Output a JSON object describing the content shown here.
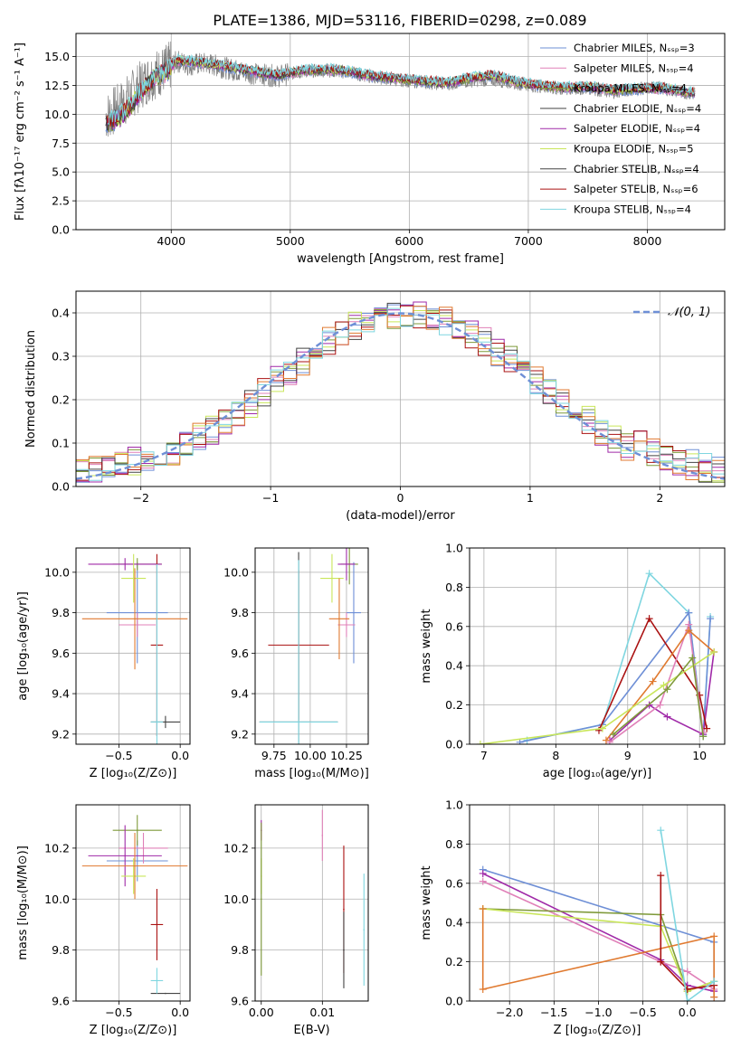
{
  "figure": {
    "title": "PLATE=1386, MJD=53116, FIBERID=0298, z=0.089"
  },
  "colors": {
    "series": [
      "#6e8fd6",
      "#e080b8",
      "#7f9a3a",
      "#a02aa8",
      "#c9e65a",
      "#444444",
      "#aa1111",
      "#e07a30",
      "#7fd6e0"
    ]
  },
  "chart_data": [
    {
      "id": "spectrum",
      "type": "line",
      "xlabel": "wavelength [Angstrom, rest frame]",
      "ylabel": "Flux [fλ10⁻¹⁷ erg cm⁻² s⁻¹ A⁻¹]",
      "xlim": [
        3200,
        8650
      ],
      "ylim": [
        0,
        17
      ],
      "xticks": [
        4000,
        5000,
        6000,
        7000,
        8000
      ],
      "yticks": [
        0.0,
        2.5,
        5.0,
        7.5,
        10.0,
        12.5,
        15.0
      ],
      "legend_position": "top-right",
      "legend": [
        {
          "label": "Chabrier MILES, Nₛₛₚ=3",
          "color": "#6e8fd6"
        },
        {
          "label": "Salpeter MILES, Nₛₛₚ=4",
          "color": "#e080b8"
        },
        {
          "label": "Kroupa MILES, Nₛₛₚ=4",
          "color": "#7f9a3a"
        },
        {
          "label": "Chabrier ELODIE, Nₛₛₚ=4",
          "color": "#444444"
        },
        {
          "label": "Salpeter ELODIE, Nₛₛₚ=4",
          "color": "#a02aa8"
        },
        {
          "label": "Kroupa ELODIE, Nₛₛₚ=5",
          "color": "#c9e65a"
        },
        {
          "label": "Chabrier STELIB, Nₛₛₚ=4",
          "color": "#444444"
        },
        {
          "label": "Salpeter STELIB, Nₛₛₚ=6",
          "color": "#aa1111"
        },
        {
          "label": "Kroupa STELIB, Nₛₛₚ=4",
          "color": "#7fd6e0"
        }
      ],
      "data_trace": {
        "x": [
          3450,
          3550,
          3650,
          3750,
          3850,
          3950,
          4050,
          4150,
          4300,
          4500,
          4700,
          4900,
          5100,
          5300,
          5500,
          5700,
          5900,
          6100,
          6300,
          6500,
          6700,
          6900,
          7100,
          7300,
          7500,
          7700,
          7900,
          8100,
          8300,
          8400
        ],
        "y": [
          9.8,
          10.5,
          11.5,
          12.6,
          13.4,
          13.9,
          14.6,
          14.3,
          14.4,
          13.9,
          13.5,
          13.3,
          13.7,
          13.8,
          13.6,
          13.2,
          13.0,
          12.8,
          12.6,
          12.9,
          13.0,
          12.7,
          12.4,
          12.1,
          12.3,
          11.9,
          12.2,
          12.3,
          11.9,
          11.8
        ],
        "color": "#808080"
      },
      "model_trace": {
        "x": [
          3450,
          3550,
          3650,
          3750,
          3850,
          3950,
          4050,
          4150,
          4300,
          4500,
          4700,
          4900,
          5100,
          5300,
          5500,
          5700,
          5900,
          6100,
          6300,
          6500,
          6700,
          6900,
          7100,
          7300,
          7500,
          7700,
          7900,
          8100,
          8300,
          8400
        ],
        "y": [
          9.2,
          9.6,
          10.6,
          12.0,
          13.1,
          13.6,
          14.7,
          14.6,
          14.4,
          14.1,
          13.7,
          13.4,
          13.8,
          13.9,
          13.7,
          13.3,
          13.1,
          12.9,
          12.7,
          13.1,
          13.4,
          12.8,
          12.5,
          12.3,
          12.4,
          12.1,
          12.2,
          12.3,
          12.0,
          11.9
        ]
      }
    },
    {
      "id": "residuals",
      "type": "histogram",
      "xlabel": "(data-model)/error",
      "ylabel": "Normed distribution",
      "xlim": [
        -2.5,
        2.5
      ],
      "ylim": [
        0,
        0.45
      ],
      "xticks": [
        -2,
        -1,
        0,
        1,
        2
      ],
      "yticks": [
        0.0,
        0.1,
        0.2,
        0.3,
        0.4
      ],
      "legend_position": "top-right",
      "legend": [
        {
          "label": "𝒩(0, 1)",
          "color": "#6e8fd6",
          "style": "dashed"
        }
      ],
      "bin_width": 0.1
    },
    {
      "id": "age_vs_Z",
      "type": "errorbar",
      "xlabel": "Z [log₁₀(Z/Z⊙)]",
      "ylabel": "age  [log₁₀(age/yr)]",
      "xlim": [
        -0.85,
        0.08
      ],
      "ylim": [
        9.15,
        10.12
      ],
      "xticks": [
        -0.5,
        0.0
      ],
      "yticks": [
        9.2,
        9.4,
        9.6,
        9.8,
        10.0
      ],
      "points": [
        {
          "x": -0.35,
          "y": 9.8,
          "xerr": 0.25,
          "yerr": 0.25,
          "color": "#6e8fd6"
        },
        {
          "x": -0.35,
          "y": 9.74,
          "xerr": 0.15,
          "yerr": 0.06,
          "color": "#e080b8"
        },
        {
          "x": -0.35,
          "y": 10.04,
          "xerr": 0.2,
          "yerr": 0.03,
          "color": "#7f9a3a"
        },
        {
          "x": -0.45,
          "y": 10.04,
          "xerr": 0.3,
          "yerr": 0.03,
          "color": "#a02aa8"
        },
        {
          "x": -0.38,
          "y": 9.97,
          "xerr": 0.1,
          "yerr": 0.12,
          "color": "#c9e65a"
        },
        {
          "x": -0.12,
          "y": 9.26,
          "xerr": 0.12,
          "yerr": 0.03,
          "color": "#444444"
        },
        {
          "x": -0.19,
          "y": 9.64,
          "xerr": 0.05,
          "yerr": 0.45,
          "color": "#aa1111"
        },
        {
          "x": -0.37,
          "y": 9.77,
          "xerr": 0.43,
          "yerr": 0.25,
          "color": "#e07a30"
        },
        {
          "x": -0.19,
          "y": 9.26,
          "xerr": 0.05,
          "yerr": 0.78,
          "color": "#7fd6e0"
        }
      ]
    },
    {
      "id": "age_vs_mass",
      "type": "errorbar",
      "xlabel": "mass [log₁₀(M/M⊙)]",
      "ylabel": "",
      "xlim": [
        9.62,
        10.4
      ],
      "ylim": [
        9.15,
        10.12
      ],
      "xticks": [
        9.75,
        10.0,
        10.25
      ],
      "yticks": [
        9.2,
        9.4,
        9.6,
        9.8,
        10.0
      ],
      "points": [
        {
          "x": 10.3,
          "y": 9.8,
          "xerr": 0.05,
          "yerr": 0.25,
          "color": "#6e8fd6"
        },
        {
          "x": 10.25,
          "y": 9.74,
          "xerr": 0.06,
          "yerr": 0.06,
          "color": "#e080b8"
        },
        {
          "x": 10.27,
          "y": 10.04,
          "xerr": 0.06,
          "yerr": 0.1,
          "color": "#7f9a3a"
        },
        {
          "x": 10.25,
          "y": 10.04,
          "xerr": 0.06,
          "yerr": 0.08,
          "color": "#a02aa8"
        },
        {
          "x": 10.15,
          "y": 9.97,
          "xerr": 0.08,
          "yerr": 0.12,
          "color": "#c9e65a"
        },
        {
          "x": 9.92,
          "y": 9.26,
          "xerr": 0.27,
          "yerr": 0.84,
          "color": "#444444"
        },
        {
          "x": 9.92,
          "y": 9.64,
          "xerr": 0.21,
          "yerr": 0.37,
          "color": "#aa1111"
        },
        {
          "x": 10.2,
          "y": 9.77,
          "xerr": 0.07,
          "yerr": 0.2,
          "color": "#e07a30"
        },
        {
          "x": 9.92,
          "y": 9.26,
          "xerr": 0.27,
          "yerr": 0.8,
          "color": "#7fd6e0"
        }
      ]
    },
    {
      "id": "weight_vs_age",
      "type": "line",
      "xlabel": "age  [log₁₀(age/yr)]",
      "ylabel": "mass weight",
      "xlim": [
        6.8,
        10.35
      ],
      "ylim": [
        0,
        1.0
      ],
      "xticks": [
        7,
        8,
        9,
        10
      ],
      "yticks": [
        0.0,
        0.2,
        0.4,
        0.6,
        0.8,
        1.0
      ],
      "series": [
        {
          "x": [
            7.6,
            8.65,
            9.3,
            9.85,
            10.05,
            10.15
          ],
          "y": [
            0.02,
            0.1,
            0.87,
            0.67,
            0.05,
            0.65
          ],
          "color": "#7fd6e0"
        },
        {
          "x": [
            7.5,
            8.65,
            9.85,
            10.05,
            10.15
          ],
          "y": [
            0.01,
            0.1,
            0.67,
            0.04,
            0.64
          ],
          "color": "#6e8fd6"
        },
        {
          "x": [
            8.75,
            9.3,
            9.55,
            10.05,
            10.2
          ],
          "y": [
            0.02,
            0.2,
            0.14,
            0.05,
            0.47
          ],
          "color": "#a02aa8"
        },
        {
          "x": [
            8.6,
            9.3,
            10.0,
            10.1
          ],
          "y": [
            0.07,
            0.64,
            0.25,
            0.08
          ],
          "color": "#aa1111"
        },
        {
          "x": [
            8.75,
            9.45,
            9.85,
            10.05
          ],
          "y": [
            0.01,
            0.2,
            0.61,
            0.06
          ],
          "color": "#e080b8"
        },
        {
          "x": [
            8.7,
            9.35,
            9.85,
            10.2
          ],
          "y": [
            0.02,
            0.32,
            0.58,
            0.47
          ],
          "color": "#e07a30"
        },
        {
          "x": [
            6.95,
            8.65,
            9.5,
            10.2
          ],
          "y": [
            0.0,
            0.08,
            0.3,
            0.47
          ],
          "color": "#c9e65a"
        },
        {
          "x": [
            8.8,
            9.55,
            9.9,
            10.05
          ],
          "y": [
            0.05,
            0.28,
            0.44,
            0.04
          ],
          "color": "#7f9a3a"
        }
      ]
    },
    {
      "id": "mass_vs_Z",
      "type": "errorbar",
      "xlabel": "Z [log₁₀(Z/Z⊙)]",
      "ylabel": "mass [log₁₀(M/M⊙)]",
      "xlim": [
        -0.85,
        0.08
      ],
      "ylim": [
        9.6,
        10.37
      ],
      "xticks": [
        -0.5,
        0.0
      ],
      "yticks": [
        9.6,
        9.8,
        10.0,
        10.2
      ],
      "points": [
        {
          "x": -0.35,
          "y": 10.15,
          "xerr": 0.25,
          "yerr": 0.08,
          "color": "#6e8fd6"
        },
        {
          "x": -0.3,
          "y": 10.2,
          "xerr": 0.2,
          "yerr": 0.06,
          "color": "#e080b8"
        },
        {
          "x": -0.35,
          "y": 10.27,
          "xerr": 0.2,
          "yerr": 0.06,
          "color": "#7f9a3a"
        },
        {
          "x": -0.45,
          "y": 10.17,
          "xerr": 0.3,
          "yerr": 0.12,
          "color": "#a02aa8"
        },
        {
          "x": -0.38,
          "y": 10.09,
          "xerr": 0.1,
          "yerr": 0.07,
          "color": "#c9e65a"
        },
        {
          "x": -0.12,
          "y": 9.63,
          "xerr": 0.12,
          "yerr": 0.0,
          "color": "#444444"
        },
        {
          "x": -0.19,
          "y": 9.9,
          "xerr": 0.05,
          "yerr": 0.14,
          "color": "#aa1111"
        },
        {
          "x": -0.37,
          "y": 10.13,
          "xerr": 0.43,
          "yerr": 0.13,
          "color": "#e07a30"
        },
        {
          "x": -0.19,
          "y": 9.68,
          "xerr": 0.05,
          "yerr": 0.05,
          "color": "#7fd6e0"
        }
      ]
    },
    {
      "id": "mass_vs_ebv",
      "type": "errorbar",
      "xlabel": "E(B-V)",
      "ylabel": "",
      "xlim": [
        -0.001,
        0.0175
      ],
      "ylim": [
        9.6,
        10.37
      ],
      "xticks": [
        0.0,
        0.01
      ],
      "xticklabels": [
        "0.00",
        "0.01"
      ],
      "yticks": [
        9.6,
        9.8,
        10.0,
        10.2
      ],
      "points": [
        {
          "x": 0.0,
          "y": 10.27,
          "xerr": 0,
          "yerr": 0.04,
          "color": "#a02aa8"
        },
        {
          "x": 0.0,
          "y": 10.09,
          "xerr": 0,
          "yerr": 0.07,
          "color": "#c9e65a"
        },
        {
          "x": 0.0,
          "y": 10.0,
          "xerr": 0,
          "yerr": 0.3,
          "color": "#7f9a3a"
        },
        {
          "x": 0.01,
          "y": 10.25,
          "xerr": 0,
          "yerr": 0.1,
          "color": "#e080b8"
        },
        {
          "x": 0.0135,
          "y": 9.96,
          "xerr": 0,
          "yerr": 0.25,
          "color": "#aa1111"
        },
        {
          "x": 0.0135,
          "y": 9.8,
          "xerr": 0,
          "yerr": 0.15,
          "color": "#444444"
        },
        {
          "x": 0.0168,
          "y": 9.88,
          "xerr": 0,
          "yerr": 0.22,
          "color": "#7fd6e0"
        }
      ]
    },
    {
      "id": "weight_vs_Z",
      "type": "line",
      "xlabel": "Z [log₁₀(Z/Z⊙)]",
      "ylabel": "mass weight",
      "xlim": [
        -2.45,
        0.42
      ],
      "ylim": [
        0,
        1.0
      ],
      "xticks": [
        -2.0,
        -1.5,
        -1.0,
        -0.5,
        0.0
      ],
      "xticklabels": [
        "−2.0",
        "−1.5",
        "−1.0",
        "−0.5",
        "0.0"
      ],
      "yticks": [
        0.0,
        0.2,
        0.4,
        0.6,
        0.8,
        1.0
      ],
      "series": [
        {
          "x": [
            -2.3,
            0.3,
            0.3
          ],
          "y": [
            0.67,
            0.3,
            0.02
          ],
          "color": "#6e8fd6"
        },
        {
          "x": [
            -2.3,
            -0.3,
            0.0,
            0.3
          ],
          "y": [
            0.65,
            0.21,
            0.08,
            0.05
          ],
          "color": "#a02aa8"
        },
        {
          "x": [
            -2.3,
            -0.3,
            0.0,
            0.3
          ],
          "y": [
            0.61,
            0.2,
            0.15,
            0.06
          ],
          "color": "#e080b8"
        },
        {
          "x": [
            -2.3,
            -0.3,
            0.0,
            0.3
          ],
          "y": [
            0.47,
            0.44,
            0.05,
            0.1
          ],
          "color": "#7f9a3a"
        },
        {
          "x": [
            -2.3,
            -0.3,
            0.0,
            0.3
          ],
          "y": [
            0.47,
            0.38,
            0.05,
            0.1
          ],
          "color": "#c9e65a"
        },
        {
          "x": [
            -2.3,
            -2.3,
            0.3,
            0.3
          ],
          "y": [
            0.47,
            0.06,
            0.33,
            0.02
          ],
          "color": "#e07a30"
        },
        {
          "x": [
            -0.3,
            -0.3,
            0.0,
            0.3
          ],
          "y": [
            0.64,
            0.2,
            0.06,
            0.08
          ],
          "color": "#aa1111"
        },
        {
          "x": [
            -0.3,
            0.0,
            0.3
          ],
          "y": [
            0.87,
            0.0,
            0.1
          ],
          "color": "#7fd6e0"
        }
      ]
    }
  ]
}
